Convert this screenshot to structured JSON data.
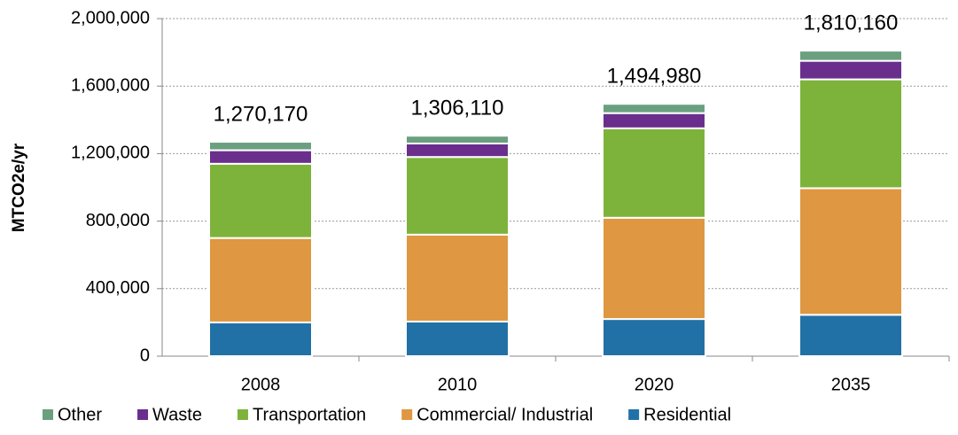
{
  "chart_data": {
    "type": "stacked_bar",
    "y_label": "MTCO2e/yr",
    "categories": [
      "2008",
      "2010",
      "2020",
      "2035"
    ],
    "series": [
      {
        "name": "Residential",
        "color": "#2271a6",
        "values": [
          200000,
          205000,
          220000,
          245000
        ]
      },
      {
        "name": "Commercial/ Industrial",
        "color": "#df9741",
        "values": [
          500000,
          515000,
          600000,
          750000
        ]
      },
      {
        "name": "Transportation",
        "color": "#7db33b",
        "values": [
          440000,
          460000,
          530000,
          645000
        ]
      },
      {
        "name": "Waste",
        "color": "#6a2f8d",
        "values": [
          80000,
          80000,
          90000,
          110000
        ]
      },
      {
        "name": "Other",
        "color": "#6aa07f",
        "values": [
          50170,
          46110,
          54980,
          60160
        ]
      }
    ],
    "legend_order": [
      4,
      3,
      2,
      1,
      0
    ],
    "totals": {
      "values": [
        1270170,
        1306110,
        1494980,
        1810160
      ],
      "value_labels": [
        "1,270,170",
        "1,306,110",
        "1,494,980",
        "1,810,160"
      ]
    },
    "ylim": [
      0,
      2000000
    ],
    "yticks": [
      0,
      {
        "value": 400000,
        "label": "400,000"
      },
      {
        "value": 800000,
        "label": "800,000"
      },
      {
        "value": 1200000,
        "label": "1,200,000"
      },
      {
        "value": 1600000,
        "label": "1,600,000"
      },
      {
        "value": 2000000,
        "label": "2,000,000"
      }
    ],
    "grid": true,
    "legend": "bottom"
  }
}
